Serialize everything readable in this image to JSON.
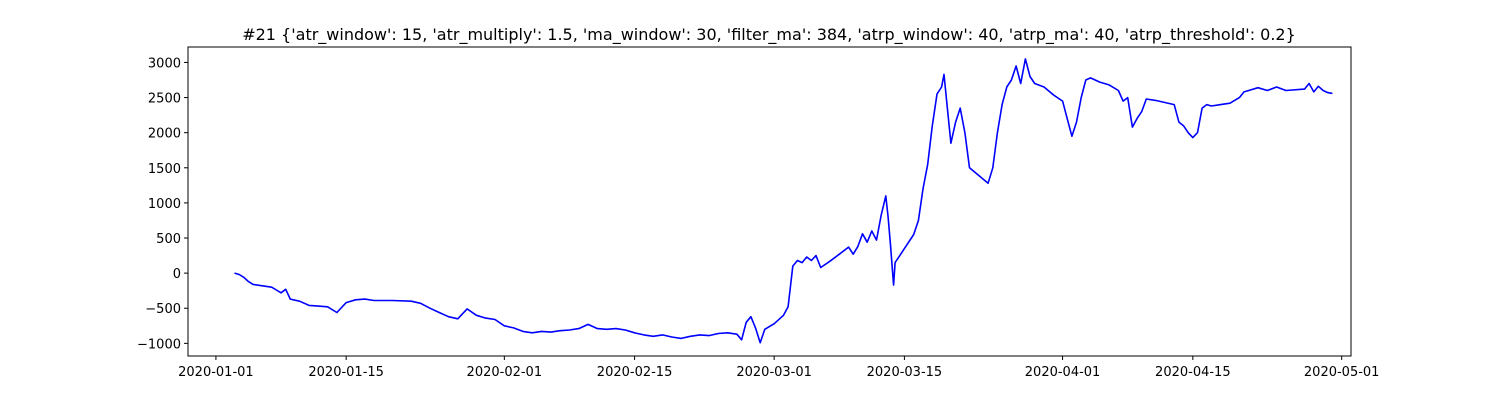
{
  "chart_data": {
    "type": "line",
    "title": "#21 {'atr_window': 15, 'atr_multiply': 1.5, 'ma_window': 30, 'filter_ma': 384, 'atrp_window': 40, 'atrp_ma': 40, 'atrp_threshold': 0.2}",
    "xlabel": "",
    "ylabel": "",
    "xlim": [
      "2019-12-29",
      "2020-05-02"
    ],
    "ylim": [
      -1180,
      3220
    ],
    "grid": false,
    "x_ticks": [
      "2020-01-01",
      "2020-01-15",
      "2020-02-01",
      "2020-02-15",
      "2020-03-01",
      "2020-03-15",
      "2020-04-01",
      "2020-04-15",
      "2020-05-01"
    ],
    "y_ticks": [
      -1000,
      -500,
      0,
      500,
      1000,
      1500,
      2000,
      2500,
      3000
    ],
    "series": [
      {
        "name": "",
        "color": "#0000ff",
        "points": [
          [
            "2020-01-03",
            0
          ],
          [
            "2020-01-03 12:00",
            -20
          ],
          [
            "2020-01-04",
            -60
          ],
          [
            "2020-01-04 12:00",
            -120
          ],
          [
            "2020-01-05",
            -160
          ],
          [
            "2020-01-06",
            -180
          ],
          [
            "2020-01-07",
            -200
          ],
          [
            "2020-01-07 12:00",
            -240
          ],
          [
            "2020-01-08",
            -280
          ],
          [
            "2020-01-08 12:00",
            -230
          ],
          [
            "2020-01-09",
            -370
          ],
          [
            "2020-01-10",
            -400
          ],
          [
            "2020-01-11",
            -460
          ],
          [
            "2020-01-12",
            -470
          ],
          [
            "2020-01-13",
            -480
          ],
          [
            "2020-01-14",
            -560
          ],
          [
            "2020-01-15",
            -420
          ],
          [
            "2020-01-16",
            -380
          ],
          [
            "2020-01-17",
            -370
          ],
          [
            "2020-01-18",
            -390
          ],
          [
            "2020-01-20",
            -390
          ],
          [
            "2020-01-22",
            -400
          ],
          [
            "2020-01-23",
            -430
          ],
          [
            "2020-01-24",
            -500
          ],
          [
            "2020-01-25",
            -560
          ],
          [
            "2020-01-26",
            -620
          ],
          [
            "2020-01-27",
            -650
          ],
          [
            "2020-01-28",
            -510
          ],
          [
            "2020-01-29",
            -600
          ],
          [
            "2020-01-30",
            -640
          ],
          [
            "2020-01-31",
            -660
          ],
          [
            "2020-02-01",
            -750
          ],
          [
            "2020-02-02",
            -780
          ],
          [
            "2020-02-03",
            -830
          ],
          [
            "2020-02-04",
            -850
          ],
          [
            "2020-02-05",
            -830
          ],
          [
            "2020-02-06",
            -840
          ],
          [
            "2020-02-07",
            -820
          ],
          [
            "2020-02-08",
            -810
          ],
          [
            "2020-02-09",
            -790
          ],
          [
            "2020-02-10",
            -730
          ],
          [
            "2020-02-11",
            -790
          ],
          [
            "2020-02-12",
            -800
          ],
          [
            "2020-02-13",
            -790
          ],
          [
            "2020-02-14",
            -810
          ],
          [
            "2020-02-15",
            -850
          ],
          [
            "2020-02-16",
            -880
          ],
          [
            "2020-02-17",
            -900
          ],
          [
            "2020-02-18",
            -880
          ],
          [
            "2020-02-19",
            -910
          ],
          [
            "2020-02-20",
            -930
          ],
          [
            "2020-02-21",
            -900
          ],
          [
            "2020-02-22",
            -880
          ],
          [
            "2020-02-23",
            -890
          ],
          [
            "2020-02-24",
            -860
          ],
          [
            "2020-02-25",
            -850
          ],
          [
            "2020-02-26",
            -870
          ],
          [
            "2020-02-26 12:00",
            -950
          ],
          [
            "2020-02-27",
            -700
          ],
          [
            "2020-02-27 12:00",
            -620
          ],
          [
            "2020-02-28",
            -780
          ],
          [
            "2020-02-28 12:00",
            -990
          ],
          [
            "2020-02-29",
            -800
          ],
          [
            "2020-03-01",
            -720
          ],
          [
            "2020-03-02",
            -600
          ],
          [
            "2020-03-02 12:00",
            -480
          ],
          [
            "2020-03-03",
            100
          ],
          [
            "2020-03-03 12:00",
            180
          ],
          [
            "2020-03-04",
            150
          ],
          [
            "2020-03-04 12:00",
            230
          ],
          [
            "2020-03-05",
            180
          ],
          [
            "2020-03-05 12:00",
            250
          ],
          [
            "2020-03-06",
            80
          ],
          [
            "2020-03-07",
            170
          ],
          [
            "2020-03-08",
            270
          ],
          [
            "2020-03-09",
            370
          ],
          [
            "2020-03-09 12:00",
            270
          ],
          [
            "2020-03-10",
            380
          ],
          [
            "2020-03-10 12:00",
            560
          ],
          [
            "2020-03-11",
            440
          ],
          [
            "2020-03-11 12:00",
            600
          ],
          [
            "2020-03-12",
            470
          ],
          [
            "2020-03-12 12:00",
            820
          ],
          [
            "2020-03-13",
            1100
          ],
          [
            "2020-03-13 06:00",
            800
          ],
          [
            "2020-03-13 12:00",
            400
          ],
          [
            "2020-03-13 16:00",
            120
          ],
          [
            "2020-03-13 20:00",
            -170
          ],
          [
            "2020-03-14",
            150
          ],
          [
            "2020-03-15",
            350
          ],
          [
            "2020-03-16",
            550
          ],
          [
            "2020-03-16 12:00",
            750
          ],
          [
            "2020-03-17",
            1200
          ],
          [
            "2020-03-17 12:00",
            1550
          ],
          [
            "2020-03-18",
            2100
          ],
          [
            "2020-03-18 12:00",
            2550
          ],
          [
            "2020-03-19",
            2650
          ],
          [
            "2020-03-19 06:00",
            2830
          ],
          [
            "2020-03-19 12:00",
            2500
          ],
          [
            "2020-03-20",
            1850
          ],
          [
            "2020-03-20 12:00",
            2150
          ],
          [
            "2020-03-21",
            2350
          ],
          [
            "2020-03-21 12:00",
            2000
          ],
          [
            "2020-03-22",
            1500
          ],
          [
            "2020-03-24",
            1280
          ],
          [
            "2020-03-24 12:00",
            1500
          ],
          [
            "2020-03-25",
            2000
          ],
          [
            "2020-03-25 12:00",
            2400
          ],
          [
            "2020-03-26",
            2650
          ],
          [
            "2020-03-26 12:00",
            2750
          ],
          [
            "2020-03-27",
            2950
          ],
          [
            "2020-03-27 12:00",
            2700
          ],
          [
            "2020-03-28",
            3050
          ],
          [
            "2020-03-28 12:00",
            2800
          ],
          [
            "2020-03-29",
            2700
          ],
          [
            "2020-03-30",
            2650
          ],
          [
            "2020-03-31",
            2540
          ],
          [
            "2020-04-01",
            2450
          ],
          [
            "2020-04-01 12:00",
            2200
          ],
          [
            "2020-04-02",
            1950
          ],
          [
            "2020-04-02 12:00",
            2150
          ],
          [
            "2020-04-03",
            2500
          ],
          [
            "2020-04-03 12:00",
            2750
          ],
          [
            "2020-04-04",
            2780
          ],
          [
            "2020-04-05",
            2720
          ],
          [
            "2020-04-06",
            2680
          ],
          [
            "2020-04-07",
            2600
          ],
          [
            "2020-04-07 12:00",
            2450
          ],
          [
            "2020-04-08",
            2500
          ],
          [
            "2020-04-08 12:00",
            2080
          ],
          [
            "2020-04-09",
            2200
          ],
          [
            "2020-04-09 12:00",
            2300
          ],
          [
            "2020-04-10",
            2480
          ],
          [
            "2020-04-11",
            2460
          ],
          [
            "2020-04-12",
            2430
          ],
          [
            "2020-04-13",
            2400
          ],
          [
            "2020-04-13 12:00",
            2150
          ],
          [
            "2020-04-14",
            2100
          ],
          [
            "2020-04-14 12:00",
            2000
          ],
          [
            "2020-04-15",
            1930
          ],
          [
            "2020-04-15 12:00",
            2000
          ],
          [
            "2020-04-16",
            2350
          ],
          [
            "2020-04-16 12:00",
            2400
          ],
          [
            "2020-04-17",
            2380
          ],
          [
            "2020-04-18",
            2400
          ],
          [
            "2020-04-19",
            2420
          ],
          [
            "2020-04-20",
            2500
          ],
          [
            "2020-04-20 12:00",
            2580
          ],
          [
            "2020-04-21",
            2600
          ],
          [
            "2020-04-22",
            2640
          ],
          [
            "2020-04-23",
            2600
          ],
          [
            "2020-04-24",
            2650
          ],
          [
            "2020-04-25",
            2600
          ],
          [
            "2020-04-27",
            2620
          ],
          [
            "2020-04-27 12:00",
            2700
          ],
          [
            "2020-04-28",
            2580
          ],
          [
            "2020-04-28 12:00",
            2660
          ],
          [
            "2020-04-29",
            2600
          ],
          [
            "2020-04-29 12:00",
            2570
          ],
          [
            "2020-04-30",
            2560
          ]
        ]
      }
    ]
  }
}
